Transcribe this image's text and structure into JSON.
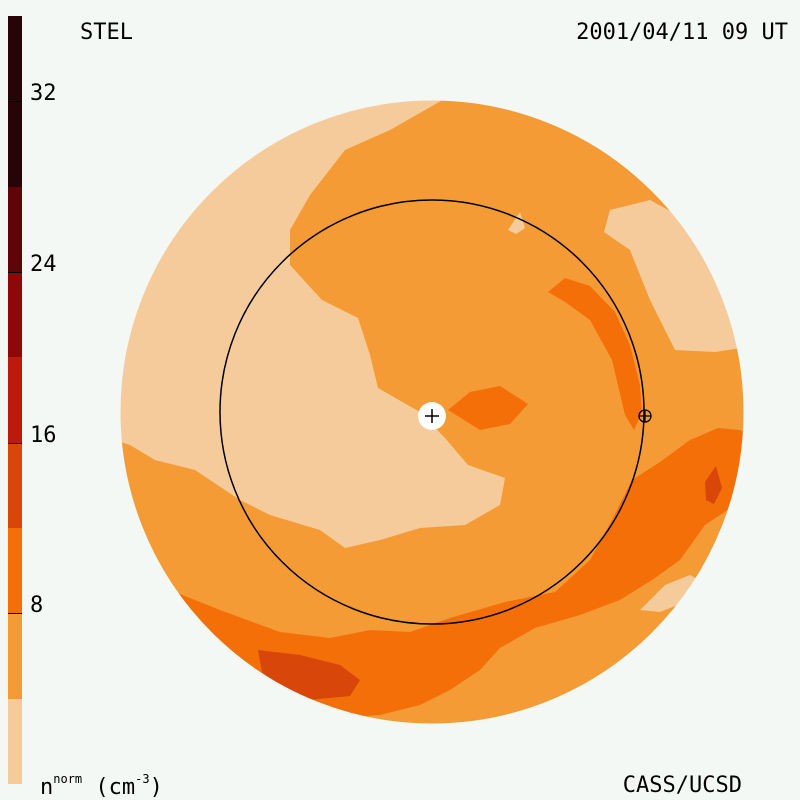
{
  "header": {
    "observatory": "STEL",
    "timestamp": "2001/04/11 09 UT"
  },
  "footer": {
    "credit": "CASS/UCSD",
    "unit_base": "n",
    "unit_sup": "norm",
    "unit_open": "(cm",
    "unit_exp": "-3",
    "unit_close": ")"
  },
  "colorbar": {
    "levels": [
      {
        "from": 0,
        "to": 4,
        "color": "#f6cb9b"
      },
      {
        "from": 4,
        "to": 8,
        "color": "#f59b35"
      },
      {
        "from": 8,
        "to": 12,
        "color": "#f56f08"
      },
      {
        "from": 12,
        "to": 16,
        "color": "#d8460a"
      },
      {
        "from": 16,
        "to": 20,
        "color": "#bb1a0e"
      },
      {
        "from": 20,
        "to": 24,
        "color": "#8e080a"
      },
      {
        "from": 24,
        "to": 28,
        "color": "#5f0408"
      },
      {
        "from": 28,
        "to": 36,
        "color": "#260408"
      }
    ],
    "tick_labels": [
      "8",
      "16",
      "24",
      "32"
    ],
    "tick_values": [
      8,
      16,
      24,
      32
    ],
    "range": [
      0,
      36
    ]
  },
  "map": {
    "center_marker": "+",
    "earth_marker": "⊕",
    "colors": {
      "light": "#f6cb9b",
      "base": "#f59b35",
      "mid": "#f56f08",
      "high": "#d8460a",
      "peak": "#bb1a0e"
    }
  }
}
